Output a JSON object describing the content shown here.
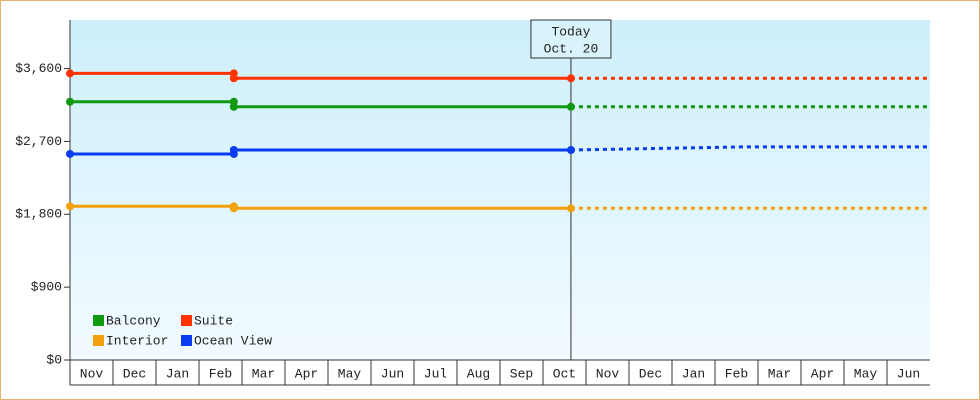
{
  "chart_data": {
    "type": "line",
    "categories": [
      "Nov",
      "Dec",
      "Jan",
      "Feb",
      "Mar",
      "Apr",
      "May",
      "Jun",
      "Jul",
      "Aug",
      "Sep",
      "Oct",
      "Nov",
      "Dec",
      "Jan",
      "Feb",
      "Mar",
      "Apr",
      "May",
      "Jun"
    ],
    "xlim": [
      0,
      20
    ],
    "x": [
      0,
      3.81,
      3.81,
      11.65
    ],
    "forecast_x": [
      11.65,
      15.6,
      20
    ],
    "ylim": [
      0,
      4200
    ],
    "yticks": [
      {
        "value": 0,
        "label": "$0"
      },
      {
        "value": 900,
        "label": "$900"
      },
      {
        "value": 1800,
        "label": "$1,800"
      },
      {
        "value": 2700,
        "label": "$2,700"
      },
      {
        "value": 3600,
        "label": "$3,600"
      }
    ],
    "today": {
      "x": 11.65,
      "label": "Today",
      "date": "Oct. 20"
    },
    "series": [
      {
        "name": "Balcony",
        "color": "#119911",
        "values": [
          3190,
          3190,
          3128,
          3128
        ],
        "forecast_values": [
          3128,
          3128,
          3128
        ]
      },
      {
        "name": "Suite",
        "color": "#ff3300",
        "values": [
          3540,
          3540,
          3480,
          3480
        ],
        "forecast_values": [
          3480,
          3480,
          3480
        ]
      },
      {
        "name": "Interior",
        "color": "#f2a10c",
        "values": [
          1899,
          1899,
          1874,
          1874
        ],
        "forecast_values": [
          1874,
          1874,
          1874
        ]
      },
      {
        "name": "Ocean View",
        "color": "#0a3cf0",
        "values": [
          2545,
          2545,
          2594,
          2594
        ],
        "forecast_values": [
          2594,
          2632,
          2632
        ]
      }
    ]
  }
}
